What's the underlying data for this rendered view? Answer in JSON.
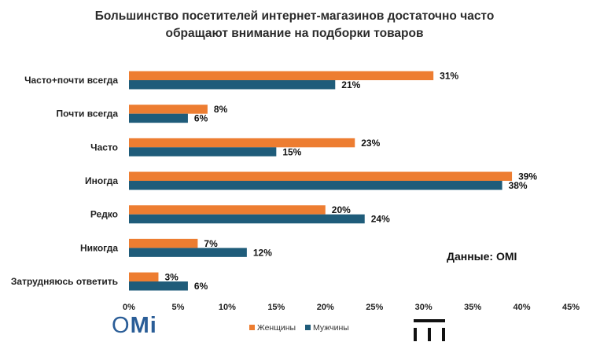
{
  "title_line1": "Большинство посетителей интернет-магазинов достаточно часто",
  "title_line2": "обращают внимание на подборки товаров",
  "source_label": "Данные: OMI",
  "logo": {
    "o": "O",
    "mi": "Mi"
  },
  "colors": {
    "women": "#ed7d31",
    "men": "#1f5c7a",
    "axis_text": "#222222"
  },
  "chart_data": {
    "type": "bar",
    "orientation": "horizontal",
    "categories": [
      "Часто+почти всегда",
      "Почти всегда",
      "Часто",
      "Иногда",
      "Редко",
      "Никогда",
      "Затрудняюсь ответить"
    ],
    "series": [
      {
        "name": "Женщины",
        "values": [
          31,
          8,
          23,
          39,
          20,
          7,
          3
        ]
      },
      {
        "name": "Мужчины",
        "values": [
          21,
          6,
          15,
          38,
          24,
          12,
          6
        ]
      }
    ],
    "value_suffix": "%",
    "xlim": [
      0,
      45
    ],
    "xticks": [
      0,
      5,
      10,
      15,
      20,
      25,
      30,
      35,
      40,
      45
    ],
    "xtick_labels": [
      "0%",
      "5%",
      "10%",
      "15%",
      "20%",
      "25%",
      "30%",
      "35%",
      "40%",
      "45%"
    ],
    "legend_position": "bottom",
    "grid": false
  }
}
